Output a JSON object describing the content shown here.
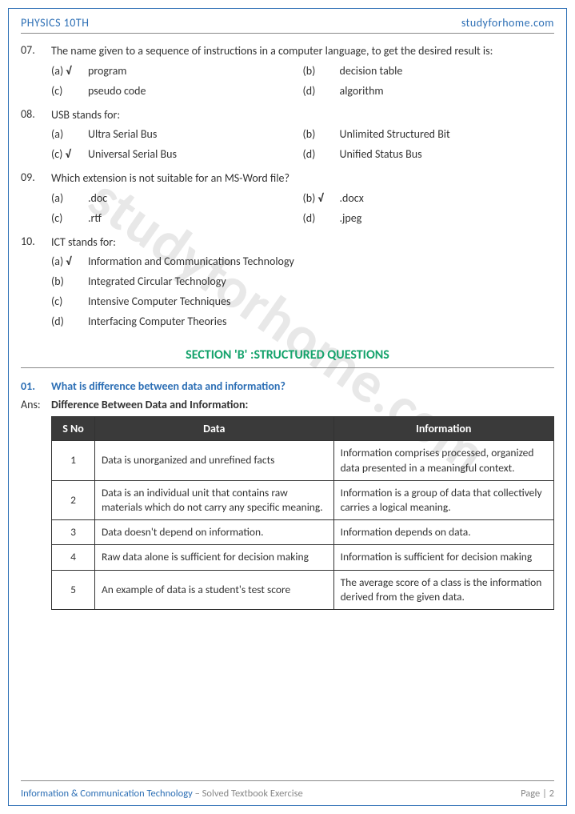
{
  "colors": {
    "accent": "#2d6fb5",
    "section_green": "#15a36c",
    "table_header_bg": "#3a3a3a",
    "table_header_fg": "#ffffff",
    "border": "#333333",
    "muted": "#888888",
    "watermark": "#bfbfbf"
  },
  "header": {
    "left": "PHYSICS 10TH",
    "right": "studyforhome.com"
  },
  "watermark_text": "studyforhome.com",
  "mcqs": [
    {
      "num": "07.",
      "text": "The name given to a sequence of instructions in a computer language, to get the desired result is:",
      "layout": "2col",
      "options": [
        {
          "letter": "(a)",
          "text": "program",
          "correct": true
        },
        {
          "letter": "(b)",
          "text": "decision table",
          "correct": false
        },
        {
          "letter": "(c)",
          "text": "pseudo code",
          "correct": false
        },
        {
          "letter": "(d)",
          "text": "algorithm",
          "correct": false
        }
      ]
    },
    {
      "num": "08.",
      "text": "USB stands for:",
      "layout": "2col",
      "options": [
        {
          "letter": "(a)",
          "text": "Ultra Serial Bus",
          "correct": false
        },
        {
          "letter": "(b)",
          "text": "Unlimited Structured Bit",
          "correct": false
        },
        {
          "letter": "(c)",
          "text": "Universal Serial Bus",
          "correct": true
        },
        {
          "letter": "(d)",
          "text": "Unified Status Bus",
          "correct": false
        }
      ]
    },
    {
      "num": "09.",
      "text": "Which extension is not suitable for an MS-Word file?",
      "layout": "2col",
      "options": [
        {
          "letter": "(a)",
          "text": ".doc",
          "correct": false
        },
        {
          "letter": "(b)",
          "text": ".docx",
          "correct": true
        },
        {
          "letter": "(c)",
          "text": ".rtf",
          "correct": false
        },
        {
          "letter": "(d)",
          "text": ".jpeg",
          "correct": false
        }
      ]
    },
    {
      "num": "10.",
      "text": "ICT stands for:",
      "layout": "1col",
      "options": [
        {
          "letter": "(a)",
          "text": "Information and Communications Technology",
          "correct": true
        },
        {
          "letter": "(b)",
          "text": "Integrated Circular Technology",
          "correct": false
        },
        {
          "letter": "(c)",
          "text": "Intensive Computer Techniques",
          "correct": false
        },
        {
          "letter": "(d)",
          "text": "Interfacing Computer Theories",
          "correct": false
        }
      ]
    }
  ],
  "section_b_title": "SECTION 'B' :STRUCTURED QUESTIONS",
  "sq": {
    "num": "01.",
    "question": "What is difference between data and information?",
    "ans_label": "Ans:",
    "ans_heading": "Difference Between Data and Information:"
  },
  "table": {
    "columns": [
      "S No",
      "Data",
      "Information"
    ],
    "col_widths": [
      "54px",
      "auto",
      "auto"
    ],
    "rows": [
      [
        "1",
        "Data is unorganized and unrefined facts",
        "Information comprises processed, organized data presented in a meaningful context."
      ],
      [
        "2",
        "Data is an individual unit that contains raw materials which do not carry any specific meaning.",
        "Information is a group of data that collectively carries a logical meaning."
      ],
      [
        "3",
        "Data doesn't depend on information.",
        "Information depends on data."
      ],
      [
        "4",
        "Raw data alone is sufficient for decision making",
        "Information is sufficient for decision making"
      ],
      [
        "5",
        "An example of data is a student's test score",
        "The average score of a class is the information derived from the given data."
      ]
    ]
  },
  "footer": {
    "left_main": "Information & Communication Technology",
    "left_sub": " – Solved Textbook Exercise",
    "right": "Page | 2"
  },
  "tick_symbol": "√"
}
